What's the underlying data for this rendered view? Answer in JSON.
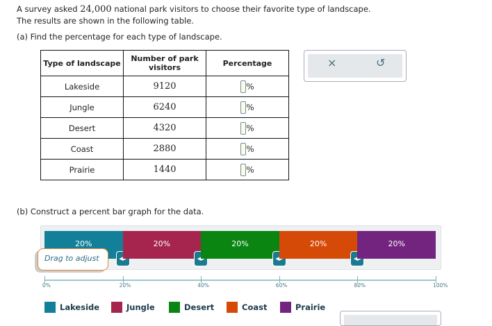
{
  "intro": {
    "pre": "A survey asked ",
    "number": "24,000",
    "post": " national park visitors to choose their favorite type of landscape.",
    "line2": "The results are shown in the following table."
  },
  "part_a": "(a) Find the percentage for each type of landscape.",
  "table": {
    "headers": [
      "Type of landscape",
      "Number of park visitors",
      "Percentage"
    ],
    "rows": [
      {
        "type": "Lakeside",
        "visitors": "9120",
        "unit": "%"
      },
      {
        "type": "Jungle",
        "visitors": "6240",
        "unit": "%"
      },
      {
        "type": "Desert",
        "visitors": "4320",
        "unit": "%"
      },
      {
        "type": "Coast",
        "visitors": "2880",
        "unit": "%"
      },
      {
        "type": "Prairie",
        "visitors": "1440",
        "unit": "%"
      }
    ]
  },
  "tools": {
    "clear": "×",
    "undo": "↺"
  },
  "part_b": "(b) Construct a percent bar graph for the data.",
  "bar": {
    "segments": [
      {
        "name": "Lakeside",
        "label": "20%",
        "value": 20,
        "color": "#13809a"
      },
      {
        "name": "Jungle",
        "label": "20%",
        "value": 20,
        "color": "#a6254f"
      },
      {
        "name": "Desert",
        "label": "20%",
        "value": 20,
        "color": "#0a8512"
      },
      {
        "name": "Coast",
        "label": "20%",
        "value": 20,
        "color": "#d54a06"
      },
      {
        "name": "Prairie",
        "label": "20%",
        "value": 20,
        "color": "#72247f"
      }
    ],
    "tooltip": "Drag to adjust",
    "axis_labels": [
      "0%",
      "20%",
      "40%",
      "60%",
      "80%",
      "100%"
    ]
  }
}
